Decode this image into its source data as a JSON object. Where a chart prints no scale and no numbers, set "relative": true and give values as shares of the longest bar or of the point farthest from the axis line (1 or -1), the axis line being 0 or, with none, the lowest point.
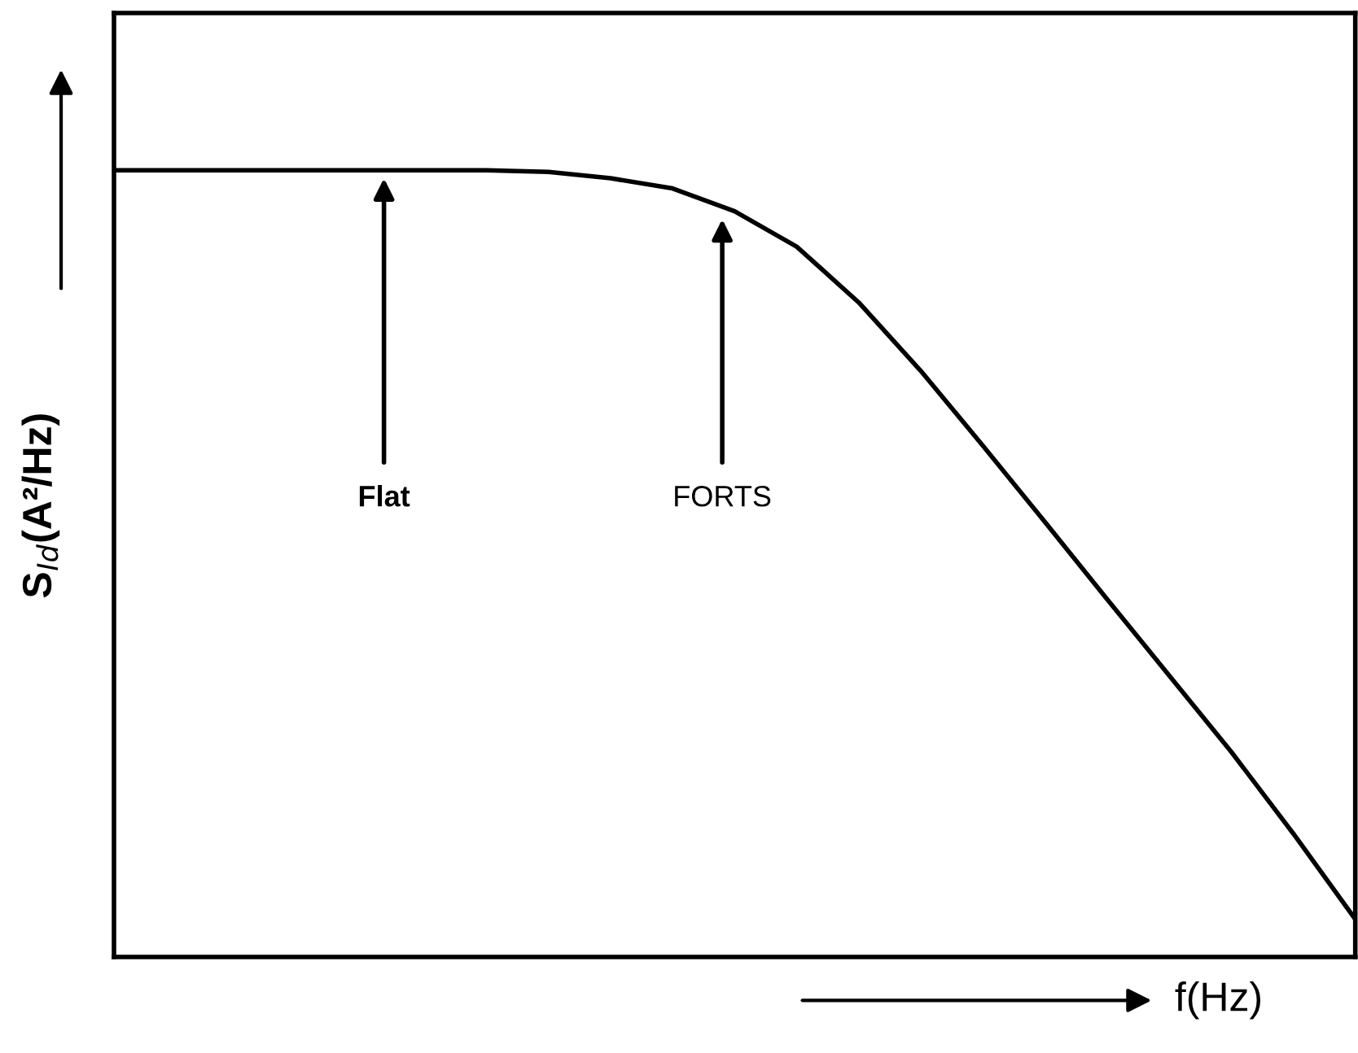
{
  "chart_data": {
    "type": "line",
    "relative": true,
    "xlabel": "f(Hz)",
    "ylabel": "S$_{Id}$(A²/Hz)",
    "categories": [
      null,
      null,
      null,
      null,
      null,
      null,
      null,
      null,
      null,
      null,
      null,
      null,
      null,
      null,
      null,
      null,
      null,
      null,
      null,
      null,
      null
    ],
    "series": [
      {
        "color": "#000000",
        "values": [
          1,
          1,
          1,
          1,
          1,
          1,
          1,
          0.998,
          0.99,
          0.977,
          0.948,
          0.903,
          0.832,
          0.745,
          0.65,
          0.553,
          0.455,
          0.358,
          0.261,
          0.157,
          0.048
        ]
      }
    ],
    "annotations": [
      "Flat",
      "FORTS"
    ],
    "grid": false,
    "legend": false,
    "marker": "none",
    "line_style": "solid"
  }
}
